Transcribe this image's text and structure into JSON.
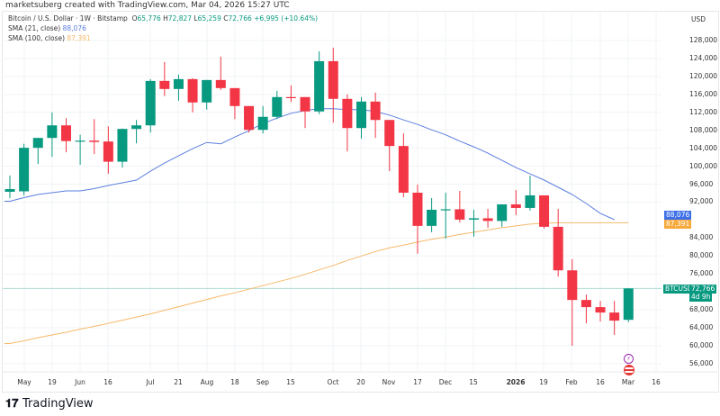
{
  "credit": "marketsuberg created with TradingView.com, Mar 04, 2026 15:27 UTC",
  "legend": {
    "symbol": "Bitcoin / U.S. Dollar · 1W · Bitstamp",
    "o_label": "O",
    "o": "65,776",
    "h_label": "H",
    "h": "72,827",
    "l_label": "L",
    "l": "65,259",
    "c_label": "C",
    "c": "72,766",
    "change": "+6,995 (+10.64%)",
    "sma21_label": "SMA (21, close)",
    "sma21_value": "88,076",
    "sma100_label": "SMA (100, close)",
    "sma100_value": "87,391"
  },
  "currency": "USD",
  "price_axis": [
    "128,000",
    "124,000",
    "120,000",
    "116,000",
    "112,000",
    "108,000",
    "104,000",
    "100,000",
    "96,000",
    "92,000",
    "84,000",
    "80,000",
    "76,000",
    "68,000",
    "64,000",
    "60,000",
    "56,000"
  ],
  "tags": {
    "sma21": "88,076",
    "sma100": "87,391",
    "symbol": "BTCUSD",
    "price": "72,766",
    "countdown": "4d 9h"
  },
  "time_axis": [
    "May",
    "19",
    "Jun",
    "16",
    "Jul",
    "21",
    "Aug",
    "18",
    "Sep",
    "15",
    "Oct",
    "20",
    "Nov",
    "17",
    "Dec",
    "15",
    "2026",
    "19",
    "Feb",
    "16",
    "Mar",
    "16"
  ],
  "colors": {
    "up": "#089981",
    "down": "#f23645",
    "sma21": "#5b7fe0",
    "sma100": "#f7b96b",
    "last_price": "#089981"
  },
  "logo": "TradingView",
  "chart_data": {
    "type": "candlestick",
    "ylim": [
      54000,
      130000
    ],
    "candles": [
      [
        94300,
        97900,
        92900,
        94900
      ],
      [
        94400,
        105000,
        93500,
        104100
      ],
      [
        104100,
        106300,
        100500,
        106300
      ],
      [
        106300,
        112000,
        102100,
        109100
      ],
      [
        109100,
        110700,
        103100,
        105600
      ],
      [
        105600,
        107000,
        100300,
        105700
      ],
      [
        105700,
        110500,
        102700,
        105400
      ],
      [
        105500,
        108900,
        98300,
        101000
      ],
      [
        101000,
        108400,
        99700,
        108300
      ],
      [
        108300,
        110300,
        105100,
        109100
      ],
      [
        109100,
        119400,
        107500,
        119000
      ],
      [
        119000,
        123200,
        115600,
        117200
      ],
      [
        117200,
        120400,
        114600,
        119400
      ],
      [
        119400,
        119600,
        112000,
        114200
      ],
      [
        114200,
        119200,
        112600,
        119200
      ],
      [
        119200,
        124400,
        117000,
        117400
      ],
      [
        117400,
        117400,
        110500,
        113400
      ],
      [
        113400,
        113400,
        107500,
        108100
      ],
      [
        108100,
        113400,
        107300,
        111000
      ],
      [
        111000,
        116800,
        110500,
        115400
      ],
      [
        115400,
        118000,
        114300,
        115200
      ],
      [
        115400,
        115400,
        108500,
        112200
      ],
      [
        112200,
        125600,
        111600,
        123400
      ],
      [
        123400,
        126400,
        109700,
        115000
      ],
      [
        115000,
        116000,
        103300,
        108500
      ],
      [
        108500,
        115400,
        106100,
        114400
      ],
      [
        114400,
        116400,
        106300,
        110300
      ],
      [
        110300,
        110300,
        98900,
        104500
      ],
      [
        104500,
        107300,
        93100,
        94100
      ],
      [
        94100,
        95900,
        80500,
        86700
      ],
      [
        86700,
        92900,
        85300,
        90300
      ],
      [
        90300,
        94100,
        83900,
        90400
      ],
      [
        90400,
        94500,
        87500,
        88100
      ],
      [
        88100,
        90300,
        84300,
        88400
      ],
      [
        88400,
        90500,
        86300,
        87800
      ],
      [
        87800,
        91500,
        86500,
        91500
      ],
      [
        91500,
        94700,
        89100,
        90700
      ],
      [
        90700,
        97900,
        90100,
        93500
      ],
      [
        93500,
        93500,
        86100,
        86500
      ],
      [
        86500,
        90500,
        75400,
        76800
      ],
      [
        76800,
        79300,
        60000,
        70200
      ],
      [
        70200,
        71400,
        65000,
        68600
      ],
      [
        68600,
        70000,
        65400,
        67400
      ],
      [
        67400,
        70000,
        62400,
        65600
      ],
      [
        65776,
        72827,
        65259,
        72766
      ]
    ],
    "sma21": [
      92200,
      93000,
      93700,
      94100,
      94500,
      94500,
      95000,
      95700,
      96300,
      96900,
      98900,
      100700,
      102300,
      103900,
      105300,
      105000,
      106500,
      107900,
      109500,
      110700,
      111800,
      112400,
      112800,
      112800,
      112600,
      112600,
      112200,
      111400,
      110300,
      109300,
      108100,
      107000,
      105600,
      104300,
      102900,
      101300,
      99700,
      98300,
      96900,
      95300,
      93700,
      91700,
      89500,
      88076,
      88076
    ],
    "sma100": [
      60500,
      61100,
      61800,
      62400,
      63000,
      63700,
      64300,
      65000,
      65700,
      66400,
      67100,
      67900,
      68700,
      69500,
      70300,
      71100,
      71800,
      72600,
      73400,
      74200,
      75000,
      75900,
      76900,
      77900,
      79000,
      80000,
      81000,
      81800,
      82400,
      83100,
      83700,
      84200,
      84800,
      85300,
      85800,
      86300,
      86700,
      87100,
      87300,
      87400,
      87400,
      87400,
      87400,
      87400,
      87391
    ]
  }
}
